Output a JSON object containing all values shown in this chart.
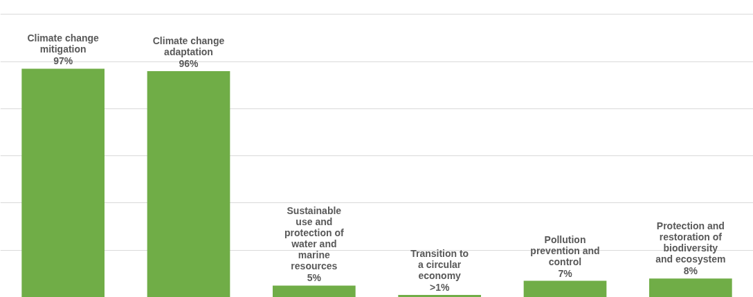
{
  "chart_data": {
    "type": "bar",
    "categories": [
      "Climate change mitigation",
      "Climate change adaptation",
      "Sustainable use and protection of water and marine resources",
      "Transition to a circular economy",
      "Pollution prevention and control",
      "Protection and restoration of biodiversity and ecosystem"
    ],
    "values": [
      97,
      96,
      5,
      1,
      7,
      8
    ],
    "value_labels": [
      "97%",
      "96%",
      "5%",
      ">1%",
      "7%",
      "8%"
    ],
    "color": "#70ad47",
    "ylim": [
      0,
      126
    ],
    "yticks": [
      {
        "value": 0,
        "label": null
      },
      {
        "value": 20,
        "label": null
      },
      {
        "value": 40,
        "label": null
      },
      {
        "value": 60,
        "label": null
      },
      {
        "value": 80,
        "label": null
      },
      {
        "value": 100,
        "label": null
      },
      {
        "value": 120,
        "label": null
      }
    ],
    "grid": "y",
    "tick_labels": false
  }
}
